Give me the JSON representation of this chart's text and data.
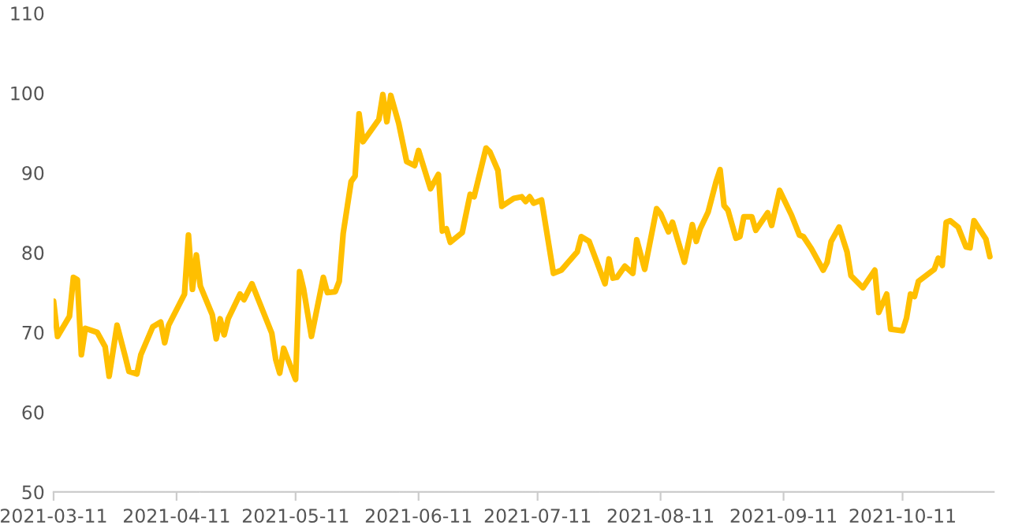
{
  "chart_data": {
    "type": "line",
    "x": [
      "2021-03-11",
      "2021-03-12",
      "2021-03-15",
      "2021-03-16",
      "2021-03-17",
      "2021-03-18",
      "2021-03-19",
      "2021-03-22",
      "2021-03-24",
      "2021-03-25",
      "2021-03-27",
      "2021-03-29",
      "2021-03-30",
      "2021-04-01",
      "2021-04-02",
      "2021-04-05",
      "2021-04-07",
      "2021-04-08",
      "2021-04-09",
      "2021-04-13",
      "2021-04-14",
      "2021-04-15",
      "2021-04-16",
      "2021-04-17",
      "2021-04-20",
      "2021-04-21",
      "2021-04-22",
      "2021-04-23",
      "2021-04-24",
      "2021-04-27",
      "2021-04-28",
      "2021-04-30",
      "2021-05-05",
      "2021-05-06",
      "2021-05-07",
      "2021-05-08",
      "2021-05-11",
      "2021-05-12",
      "2021-05-13",
      "2021-05-15",
      "2021-05-18",
      "2021-05-19",
      "2021-05-21",
      "2021-05-22",
      "2021-05-23",
      "2021-05-25",
      "2021-05-26",
      "2021-05-27",
      "2021-05-28",
      "2021-06-01",
      "2021-06-02",
      "2021-06-03",
      "2021-06-04",
      "2021-06-06",
      "2021-06-08",
      "2021-06-10",
      "2021-06-11",
      "2021-06-14",
      "2021-06-16",
      "2021-06-17",
      "2021-06-18",
      "2021-06-19",
      "2021-06-22",
      "2021-06-24",
      "2021-06-25",
      "2021-06-28",
      "2021-06-29",
      "2021-07-01",
      "2021-07-02",
      "2021-07-05",
      "2021-07-07",
      "2021-07-08",
      "2021-07-09",
      "2021-07-10",
      "2021-07-12",
      "2021-07-15",
      "2021-07-17",
      "2021-07-21",
      "2021-07-22",
      "2021-07-24",
      "2021-07-28",
      "2021-07-29",
      "2021-07-30",
      "2021-07-31",
      "2021-08-02",
      "2021-08-04",
      "2021-08-05",
      "2021-08-07",
      "2021-08-10",
      "2021-08-11",
      "2021-08-13",
      "2021-08-14",
      "2021-08-17",
      "2021-08-19",
      "2021-08-20",
      "2021-08-21",
      "2021-08-23",
      "2021-08-25",
      "2021-08-26",
      "2021-08-27",
      "2021-08-28",
      "2021-08-30",
      "2021-08-31",
      "2021-09-01",
      "2021-09-03",
      "2021-09-04",
      "2021-09-07",
      "2021-09-08",
      "2021-09-10",
      "2021-09-13",
      "2021-09-15",
      "2021-09-16",
      "2021-09-18",
      "2021-09-21",
      "2021-09-22",
      "2021-09-23",
      "2021-09-25",
      "2021-09-27",
      "2021-09-28",
      "2021-10-01",
      "2021-10-04",
      "2021-10-05",
      "2021-10-07",
      "2021-10-08",
      "2021-10-11",
      "2021-10-12",
      "2021-10-13",
      "2021-10-14",
      "2021-10-15",
      "2021-10-19",
      "2021-10-20",
      "2021-10-21",
      "2021-10-22",
      "2021-10-23",
      "2021-10-25",
      "2021-10-27",
      "2021-10-28",
      "2021-10-29",
      "2021-11-01",
      "2021-11-02"
    ],
    "series": [
      {
        "color": "#ffbf00",
        "values": [
          73.9,
          69.5,
          72.0,
          76.9,
          76.6,
          67.2,
          70.5,
          70.0,
          68.2,
          64.5,
          70.9,
          67.1,
          65.1,
          64.8,
          67.2,
          70.7,
          71.3,
          68.7,
          70.9,
          74.8,
          82.2,
          75.4,
          79.7,
          75.8,
          72.2,
          69.2,
          71.7,
          69.7,
          71.7,
          74.8,
          74.1,
          76.1,
          69.9,
          66.6,
          64.9,
          68.0,
          64.1,
          77.6,
          75.5,
          69.5,
          76.9,
          75.0,
          75.1,
          76.4,
          82.4,
          88.9,
          89.6,
          97.4,
          93.9,
          96.7,
          99.8,
          96.4,
          99.7,
          96.2,
          91.4,
          90.9,
          92.8,
          88.0,
          89.8,
          82.7,
          83.0,
          81.3,
          82.5,
          87.3,
          87.0,
          93.1,
          92.6,
          90.3,
          85.8,
          86.8,
          87.0,
          86.4,
          87.0,
          86.2,
          86.6,
          77.4,
          77.8,
          80.1,
          82.0,
          81.4,
          76.1,
          79.2,
          76.8,
          76.9,
          78.3,
          77.4,
          81.6,
          77.9,
          85.5,
          84.9,
          82.6,
          83.8,
          78.8,
          83.5,
          81.4,
          83.0,
          85.1,
          88.9,
          90.4,
          85.9,
          85.3,
          81.8,
          82.0,
          84.5,
          84.5,
          82.8,
          85.0,
          83.4,
          87.8,
          84.7,
          82.2,
          82.0,
          80.5,
          77.8,
          78.8,
          81.4,
          83.2,
          80.1,
          77.1,
          75.6,
          77.8,
          72.5,
          74.8,
          70.4,
          70.2,
          71.8,
          74.8,
          74.5,
          76.4,
          77.9,
          79.3,
          78.4,
          83.8,
          84.0,
          83.2,
          80.7,
          80.6,
          84.0,
          81.7,
          79.5
        ]
      }
    ],
    "xlim": [
      "2021-03-11",
      "2021-11-03"
    ],
    "xticks": [
      "2021-03-11",
      "2021-04-11",
      "2021-05-11",
      "2021-06-11",
      "2021-07-11",
      "2021-08-11",
      "2021-09-11",
      "2021-10-11"
    ],
    "ylim": [
      50,
      110
    ],
    "yticks": [
      50,
      60,
      70,
      80,
      90,
      100,
      110
    ],
    "line_style": "solid"
  }
}
